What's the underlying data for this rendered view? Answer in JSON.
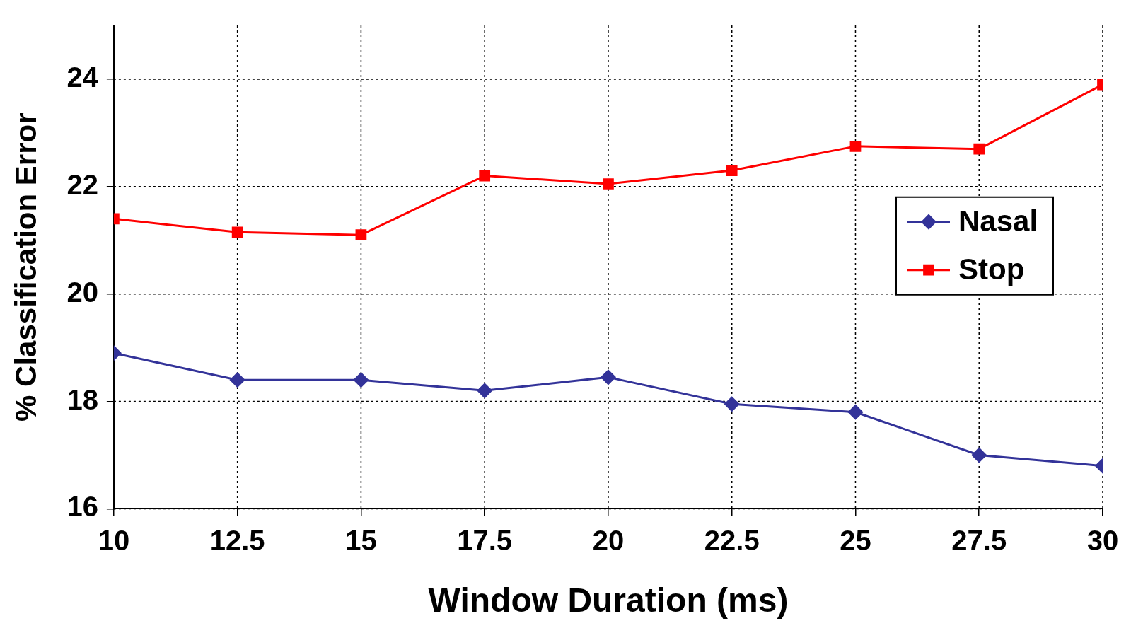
{
  "chart_data": {
    "type": "line",
    "xlabel": "Window Duration (ms)",
    "ylabel": "% Classification Error",
    "x": [
      10,
      12.5,
      15,
      17.5,
      20,
      22.5,
      25,
      27.5,
      30
    ],
    "series": [
      {
        "name": "Nasal",
        "color": "#333399",
        "marker": "diamond",
        "values": [
          18.9,
          18.4,
          18.4,
          18.2,
          18.45,
          17.95,
          17.8,
          17.0,
          16.8
        ]
      },
      {
        "name": "Stop",
        "color": "#ff0000",
        "marker": "square",
        "values": [
          21.4,
          21.15,
          21.1,
          22.2,
          22.05,
          22.3,
          22.75,
          22.7,
          23.9
        ]
      }
    ],
    "xlim": [
      10,
      30
    ],
    "xticks": [
      10,
      12.5,
      15,
      17.5,
      20,
      22.5,
      25,
      27.5,
      30
    ],
    "ylim": [
      16,
      25
    ],
    "yticks": [
      16,
      18,
      20,
      22,
      24
    ],
    "grid": true,
    "legend": "right",
    "line_style": "solid"
  }
}
